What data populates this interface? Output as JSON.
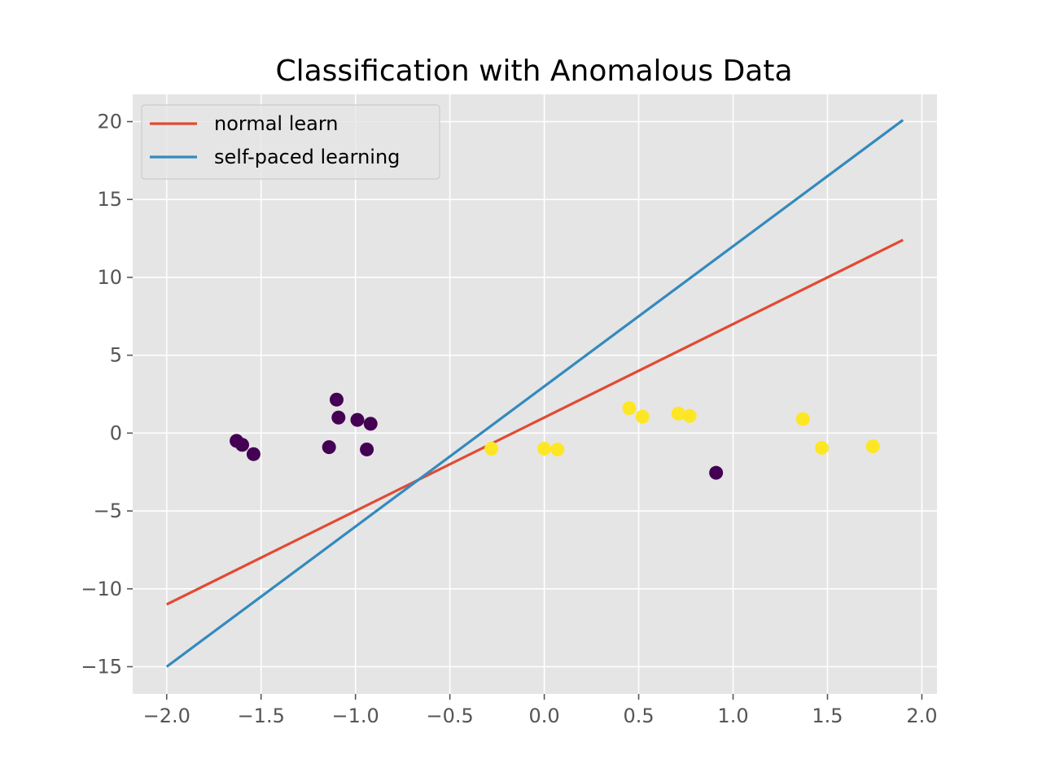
{
  "chart_data": {
    "type": "scatter",
    "title": "Classification with Anomalous Data",
    "xlabel": "",
    "ylabel": "",
    "xlim": [
      -2.18,
      2.08
    ],
    "ylim": [
      -16.75,
      21.75
    ],
    "xticks": [
      -2.0,
      -1.5,
      -1.0,
      -0.5,
      0.0,
      0.5,
      1.0,
      1.5,
      2.0
    ],
    "yticks": [
      -15,
      -10,
      -5,
      0,
      5,
      10,
      15,
      20
    ],
    "grid": true,
    "legend_position": "top-left",
    "colors": {
      "background": "#e5e5e5",
      "grid": "#ffffff",
      "class_0": "#440154",
      "class_1": "#fde725",
      "normal_learn": "#e24a33",
      "self_paced": "#348abd",
      "tick_text": "#555555"
    },
    "lines": [
      {
        "name": "normal learn",
        "color": "#e24a33",
        "x": [
          -2.0,
          1.9
        ],
        "y": [
          -11.0,
          12.4
        ]
      },
      {
        "name": "self-paced learning",
        "color": "#348abd",
        "x": [
          -2.0,
          1.9
        ],
        "y": [
          -15.0,
          20.1
        ]
      }
    ],
    "points": [
      {
        "x": -1.63,
        "y": -0.5,
        "class": 0
      },
      {
        "x": -1.6,
        "y": -0.75,
        "class": 0
      },
      {
        "x": -1.54,
        "y": -1.35,
        "class": 0
      },
      {
        "x": -1.14,
        "y": -0.9,
        "class": 0
      },
      {
        "x": -1.1,
        "y": 2.15,
        "class": 0
      },
      {
        "x": -1.09,
        "y": 1.0,
        "class": 0
      },
      {
        "x": -0.99,
        "y": 0.85,
        "class": 0
      },
      {
        "x": -0.94,
        "y": -1.05,
        "class": 0
      },
      {
        "x": -0.92,
        "y": 0.6,
        "class": 0
      },
      {
        "x": 0.91,
        "y": -2.55,
        "class": 0
      },
      {
        "x": -0.28,
        "y": -1.0,
        "class": 1
      },
      {
        "x": 0.0,
        "y": -1.0,
        "class": 1
      },
      {
        "x": 0.07,
        "y": -1.05,
        "class": 1
      },
      {
        "x": 0.45,
        "y": 1.6,
        "class": 1
      },
      {
        "x": 0.52,
        "y": 1.05,
        "class": 1
      },
      {
        "x": 0.71,
        "y": 1.25,
        "class": 1
      },
      {
        "x": 0.77,
        "y": 1.1,
        "class": 1
      },
      {
        "x": 1.37,
        "y": 0.9,
        "class": 1
      },
      {
        "x": 1.47,
        "y": -0.95,
        "class": 1
      },
      {
        "x": 1.74,
        "y": -0.85,
        "class": 1
      }
    ]
  }
}
